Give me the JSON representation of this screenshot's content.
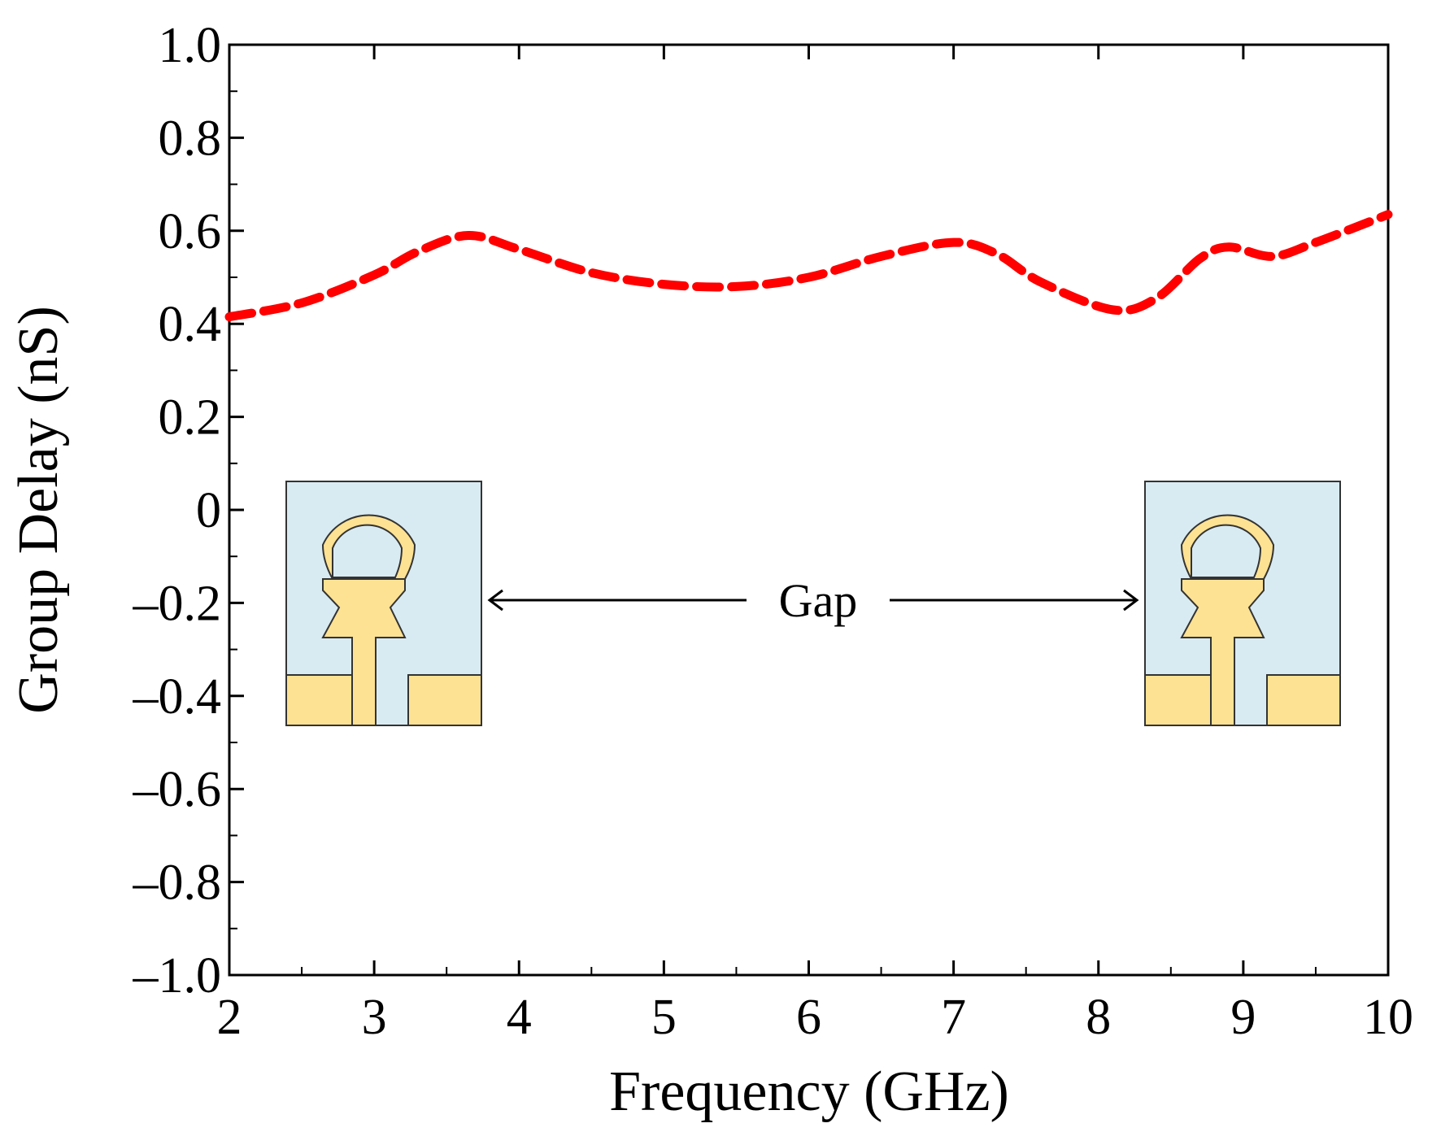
{
  "chart_data": {
    "type": "line",
    "title": "",
    "xlabel": "Frequency (GHz)",
    "ylabel": "Group Delay (nS)",
    "xlim": [
      2,
      10
    ],
    "ylim": [
      -1.0,
      1.0
    ],
    "xticks": [
      2,
      3,
      4,
      5,
      6,
      7,
      8,
      9,
      10
    ],
    "xtick_labels": [
      "2",
      "3",
      "4",
      "5",
      "6",
      "7",
      "8",
      "9",
      "10"
    ],
    "yticks": [
      1.0,
      0.8,
      0.6,
      0.4,
      0.2,
      0,
      -0.2,
      -0.4,
      -0.6,
      -0.8,
      -1.0
    ],
    "ytick_labels": [
      "1.0",
      "0.8",
      "0.6",
      "0.4",
      "0.2",
      "0",
      "–0.2",
      "–0.4",
      "–0.6",
      "–0.8",
      "–1.0"
    ],
    "grid": false,
    "series": [
      {
        "name": "Group Delay",
        "color": "#ff0000",
        "style": "dashed",
        "x": [
          2.0,
          2.5,
          3.0,
          3.3,
          3.65,
          4.0,
          4.5,
          5.0,
          5.5,
          6.0,
          6.5,
          7.0,
          7.3,
          7.6,
          8.1,
          8.4,
          8.7,
          8.9,
          9.2,
          9.5,
          10.0
        ],
        "y": [
          0.415,
          0.445,
          0.505,
          0.555,
          0.59,
          0.56,
          0.51,
          0.485,
          0.48,
          0.5,
          0.545,
          0.575,
          0.55,
          0.49,
          0.43,
          0.455,
          0.54,
          0.565,
          0.545,
          0.575,
          0.635
        ]
      }
    ],
    "annotations": [
      {
        "text": "Gap"
      }
    ]
  },
  "colors": {
    "curve": "#ff0000",
    "substrate": "#d9ebf2",
    "copper": "#fde293",
    "outline": "#333333"
  }
}
